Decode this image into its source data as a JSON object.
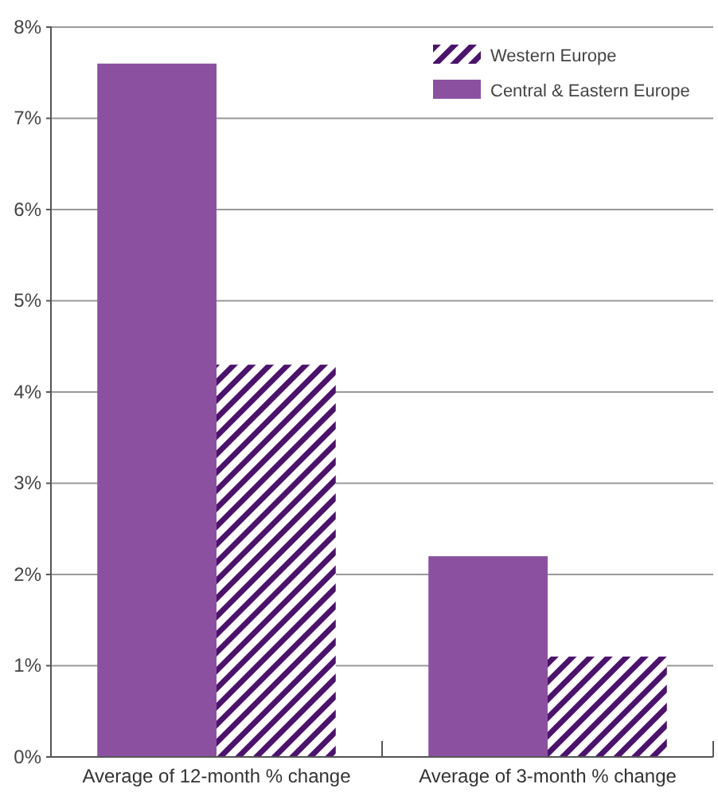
{
  "chart_data": {
    "type": "bar",
    "categories": [
      "Average of 12-month % change",
      "Average of 3-month % change"
    ],
    "series": [
      {
        "name": "Central & Eastern Europe",
        "color": "#8b51a0",
        "values": [
          7.6,
          2.2
        ]
      },
      {
        "name": "Western Europe",
        "color": "#4b136b",
        "values": [
          4.3,
          1.1
        ]
      }
    ],
    "ylim": [
      0,
      8
    ],
    "yticks": [
      {
        "value": 0,
        "label": "0%"
      },
      {
        "value": 1,
        "label": "1%"
      },
      {
        "value": 2,
        "label": "2%"
      },
      {
        "value": 3,
        "label": "3%"
      },
      {
        "value": 4,
        "label": "4%"
      },
      {
        "value": 5,
        "label": "5%"
      },
      {
        "value": 6,
        "label": "6%"
      },
      {
        "value": 7,
        "label": "7%"
      },
      {
        "value": 8,
        "label": "8%"
      }
    ],
    "grid": "y",
    "legend": "top right"
  }
}
